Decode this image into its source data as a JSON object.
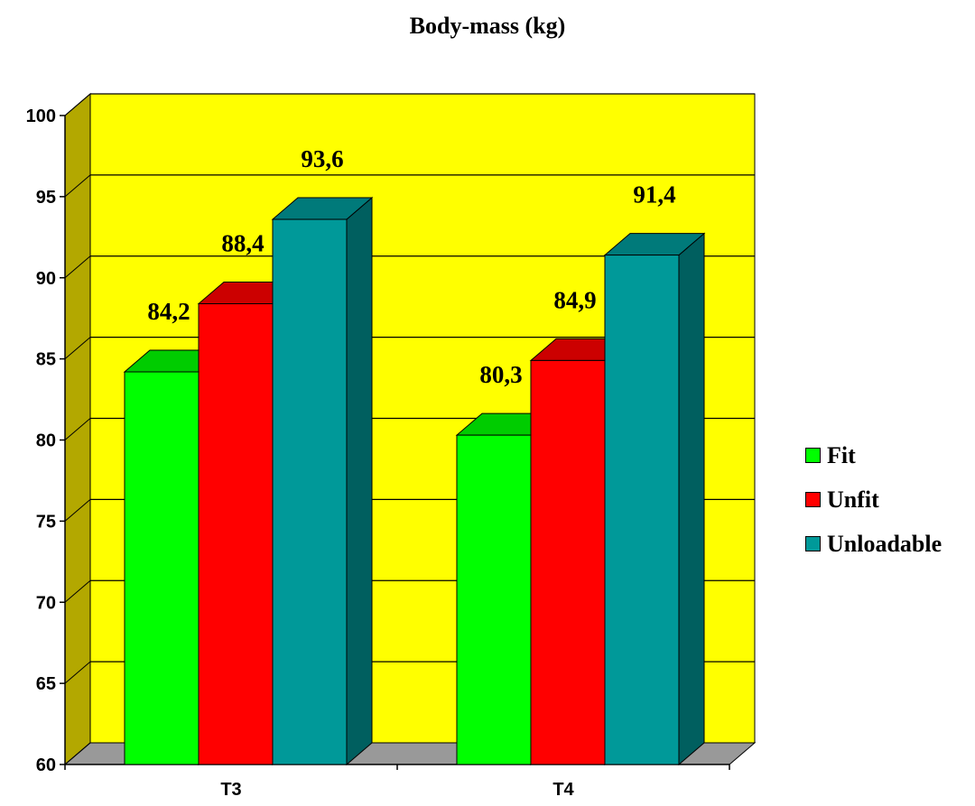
{
  "colors": {
    "wall": "#ffff00",
    "side_wall": "#b3a800",
    "floor": "#999999",
    "fit": "#00ff00",
    "unfit": "#ff0000",
    "unloadable": "#009999"
  },
  "chart_data": {
    "type": "bar",
    "title": "Body-mass (kg)",
    "xlabel": "",
    "ylabel": "",
    "categories": [
      "T3",
      "T4"
    ],
    "series": [
      {
        "name": "Fit",
        "values": [
          84.2,
          80.3
        ],
        "labels": [
          "84,2",
          "80,3"
        ]
      },
      {
        "name": "Unfit",
        "values": [
          88.4,
          84.9
        ],
        "labels": [
          "88,4",
          "84,9"
        ]
      },
      {
        "name": "Unloadable",
        "values": [
          93.6,
          91.4
        ],
        "labels": [
          "93,6",
          "91,4"
        ]
      }
    ],
    "ylim": [
      60,
      100
    ],
    "yticks": [
      "60",
      "65",
      "70",
      "75",
      "80",
      "85",
      "90",
      "95",
      "100"
    ],
    "grid": true,
    "legend": "right",
    "style": "3d"
  }
}
